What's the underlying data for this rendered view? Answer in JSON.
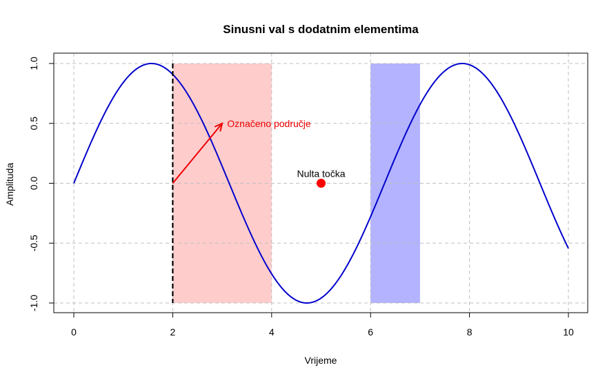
{
  "chart_data": {
    "type": "line",
    "title": "Sinusni val s dodatnim elementima",
    "xlabel": "Vrijeme",
    "ylabel": "Amplituda",
    "xlim": [
      0,
      10
    ],
    "ylim": [
      -1,
      1
    ],
    "x_ticks": [
      "0",
      "2",
      "4",
      "6",
      "8",
      "10"
    ],
    "y_ticks": [
      "-1.0",
      "-0.5",
      "0.0",
      "0.5",
      "1.0"
    ],
    "grid": true,
    "series": [
      {
        "function": "sin(x)",
        "x_range": [
          0,
          10
        ],
        "color": "#0000cc"
      }
    ],
    "shaded_regions": [
      {
        "x": [
          2,
          4
        ],
        "y": [
          -1,
          1
        ],
        "color": "#ffcccc"
      },
      {
        "x": [
          6,
          7
        ],
        "y": [
          -1,
          1
        ],
        "color": "#b3b3ff"
      }
    ],
    "vertical_line": {
      "x": 2,
      "style": "dashed",
      "color": "#000000"
    },
    "arrow": {
      "from": [
        2,
        0
      ],
      "to": [
        3,
        0.5
      ],
      "color": "#ee0000"
    },
    "annotations": [
      {
        "text": "Označeno područje",
        "x": 3.1,
        "y": 0.5,
        "color": "#ee0000"
      },
      {
        "text": "Nulta točka",
        "x": 5,
        "y": 0.08,
        "color": "#000000"
      }
    ],
    "point": {
      "x": 5,
      "y": 0,
      "color": "#ff0000"
    }
  }
}
